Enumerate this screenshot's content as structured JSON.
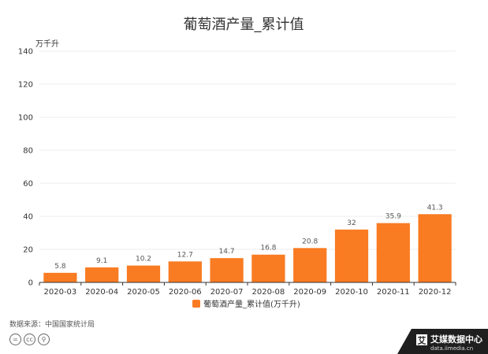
{
  "chart_data": {
    "type": "bar",
    "title": "葡萄酒产量_累计值",
    "ylabel": "万千升",
    "categories": [
      "2020-03",
      "2020-04",
      "2020-05",
      "2020-06",
      "2020-07",
      "2020-08",
      "2020-09",
      "2020-10",
      "2020-11",
      "2020-12"
    ],
    "series": [
      {
        "name": "葡萄酒产量_累计值(万千升)",
        "values": [
          5.8,
          9.1,
          10.2,
          12.7,
          14.7,
          16.8,
          20.8,
          32,
          35.9,
          41.3
        ]
      }
    ],
    "data_labels": [
      "5.8",
      "9.1",
      "10.2",
      "12.7",
      "14.7",
      "16.8",
      "20.8",
      "32",
      "35.9",
      "41.3"
    ],
    "ylim": [
      0,
      140
    ],
    "yticks": [
      0,
      20,
      40,
      60,
      80,
      100,
      120,
      140
    ],
    "grid": true,
    "legend": "bottom",
    "colors": {
      "bar": "#f97b22",
      "grid": "#ececec",
      "axis": "#333333",
      "text": "#333333"
    }
  },
  "footer": {
    "source": "数据来源：中国国家统计局",
    "license_icons": [
      "equals-icon",
      "cc-icon",
      "person-icon"
    ],
    "brand_name": "艾媒数据中心",
    "brand_url": "data.iimedia.cn",
    "brand_mark": "艾"
  }
}
